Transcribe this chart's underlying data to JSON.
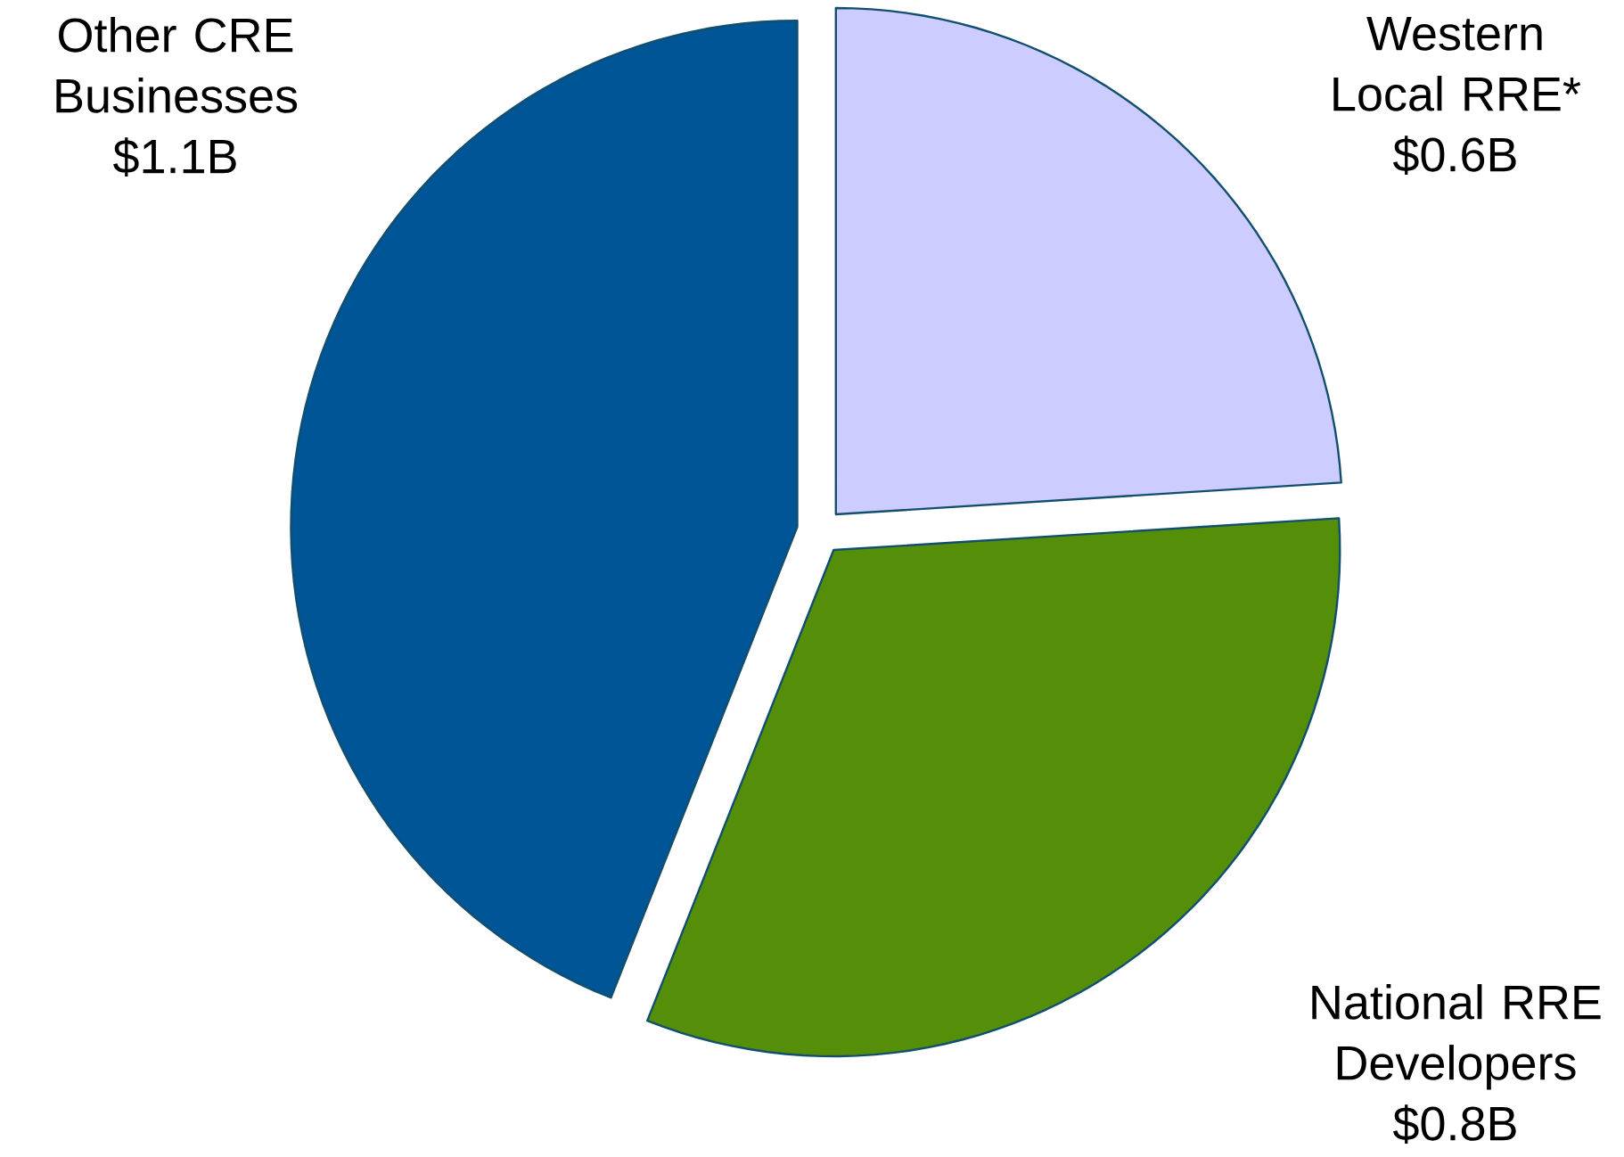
{
  "chart_data": {
    "type": "pie",
    "categories": [
      "Western Local RRE*",
      "National RRE Developers",
      "Other CRE Businesses"
    ],
    "values": [
      0.6,
      0.8,
      1.1
    ],
    "colors": [
      "#ccccff",
      "#558f0a",
      "#005596"
    ],
    "value_labels": [
      "$0.6B",
      "$0.8B",
      "$1.1B"
    ]
  }
}
